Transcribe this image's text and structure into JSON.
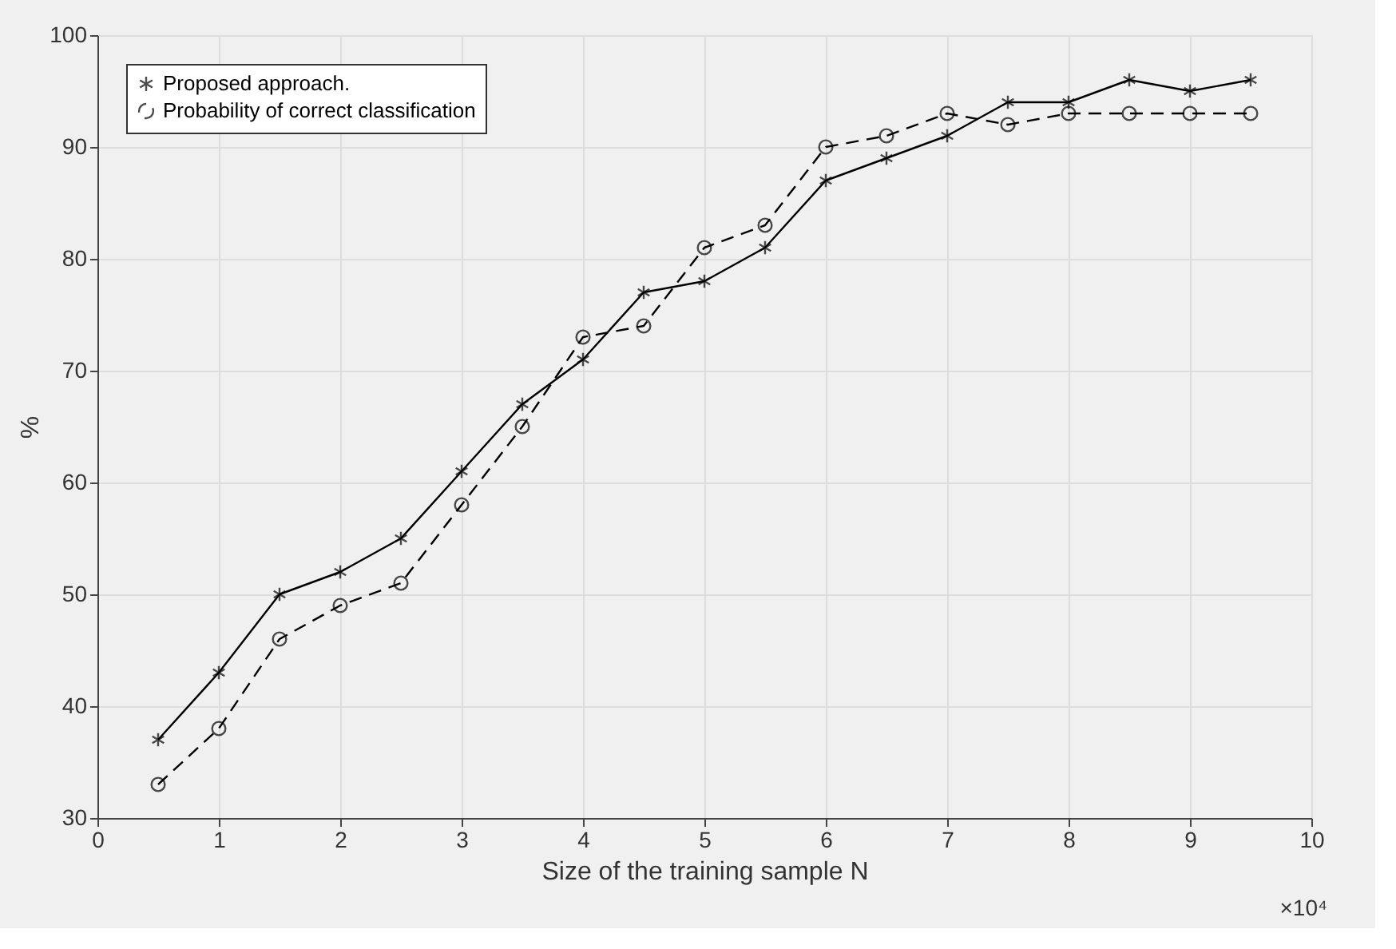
{
  "chart_data": {
    "type": "line",
    "xlabel": "Size of the training sample N",
    "ylabel": "%",
    "annotations": [
      "×10⁴"
    ],
    "x": [
      0.5,
      1,
      1.5,
      2,
      2.5,
      3,
      3.5,
      4,
      4.5,
      5,
      5.5,
      6,
      6.5,
      7,
      7.5,
      8,
      8.5,
      9,
      9.5
    ],
    "series": [
      {
        "name": "Proposed approach.",
        "color": "#000000",
        "marker": "cross",
        "line_style": "solid",
        "values": [
          37,
          43,
          50,
          52,
          55,
          61,
          67,
          71,
          77,
          78,
          81,
          87,
          89,
          91,
          94,
          94,
          96,
          95,
          96
        ]
      },
      {
        "name": "Probability of correct classification",
        "color": "#000000",
        "marker": "circle",
        "line_style": "dashed",
        "values": [
          33,
          38,
          46,
          49,
          51,
          58,
          65,
          73,
          74,
          81,
          83,
          90,
          91,
          93,
          92,
          93,
          93,
          93,
          93
        ]
      }
    ],
    "xlim": [
      0,
      10
    ],
    "xticks": [
      0,
      1,
      2,
      3,
      4,
      5,
      6,
      7,
      8,
      9,
      10
    ],
    "ylim": [
      30,
      100
    ],
    "yticks": [
      30,
      40,
      50,
      60,
      70,
      80,
      90,
      100
    ],
    "grid": true,
    "legend": "top left"
  }
}
